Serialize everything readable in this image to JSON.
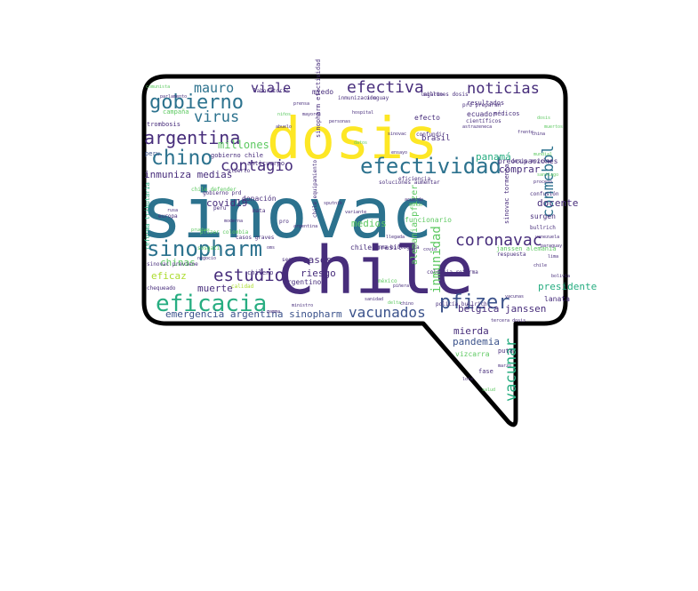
{
  "colors": {
    "yellow": "#fde725",
    "teal": "#2c728e",
    "purple": "#472d7b",
    "green": "#27ad81",
    "lightgreen": "#5ec962",
    "blue": "#3b528b",
    "seagreen": "#21918c",
    "lime": "#addc30",
    "outline": "#000000"
  },
  "words": [
    {
      "text": "sinovac",
      "color": "teal"
    },
    {
      "text": "chile",
      "color": "purple"
    },
    {
      "text": "dosis",
      "color": "yellow"
    },
    {
      "text": "efectividad",
      "color": "teal"
    },
    {
      "text": "sinopharm",
      "color": "teal"
    },
    {
      "text": "eficacia",
      "color": "green"
    },
    {
      "text": "argentina",
      "color": "purple"
    },
    {
      "text": "gobierno",
      "color": "teal"
    },
    {
      "text": "chino",
      "color": "teal"
    },
    {
      "text": "efectiva",
      "color": "purple"
    },
    {
      "text": "noticias",
      "color": "purple"
    },
    {
      "text": "coronavac",
      "color": "purple"
    },
    {
      "text": "pfizer",
      "color": "blue"
    },
    {
      "text": "estudio",
      "color": "purple"
    },
    {
      "text": "virus",
      "color": "teal"
    },
    {
      "text": "mauro",
      "color": "teal"
    },
    {
      "text": "viale",
      "color": "purple"
    },
    {
      "text": "contagio",
      "color": "purple"
    },
    {
      "text": "vacunados",
      "color": "blue"
    },
    {
      "text": "conmebol",
      "color": "teal"
    },
    {
      "text": "vacunar",
      "color": "green"
    },
    {
      "text": "inmunidad",
      "color": "lightgreen"
    },
    {
      "text": "emergencia argentina sinopharm",
      "color": "blue"
    },
    {
      "text": "inmuniza medias",
      "color": "purple"
    },
    {
      "text": "millones",
      "color": "lightgreen"
    },
    {
      "text": "covid19",
      "color": "purple"
    },
    {
      "text": "muerte",
      "color": "purple"
    },
    {
      "text": "riesgo",
      "color": "purple"
    },
    {
      "text": "casos",
      "color": "purple"
    },
    {
      "text": "medios",
      "color": "lightgreen"
    },
    {
      "text": "docente",
      "color": "purple"
    },
    {
      "text": "presidente",
      "color": "green"
    },
    {
      "text": "comprar",
      "color": "purple"
    },
    {
      "text": "pandemia",
      "color": "blue"
    },
    {
      "text": "mierda",
      "color": "purple"
    },
    {
      "text": "bélgica janssen",
      "color": "purple"
    },
    {
      "text": "chinas",
      "color": "lightgreen"
    },
    {
      "text": "eficaz",
      "color": "lime"
    },
    {
      "text": "panamá",
      "color": "green"
    },
    {
      "text": "preocupaciones",
      "color": "purple"
    },
    {
      "text": "brasil",
      "color": "purple"
    },
    {
      "text": "efecto",
      "color": "purple"
    },
    {
      "text": "ecuador",
      "color": "purple"
    },
    {
      "text": "resultados",
      "color": "purple"
    },
    {
      "text": "vizcarra",
      "color": "lightgreen"
    },
    {
      "text": "puta",
      "color": "purple"
    },
    {
      "text": "fase",
      "color": "purple"
    },
    {
      "text": "lanata",
      "color": "purple"
    },
    {
      "text": "surgen",
      "color": "purple"
    },
    {
      "text": "donación",
      "color": "purple"
    },
    {
      "text": "argentino",
      "color": "purple"
    },
    {
      "text": "miedo",
      "color": "purple"
    },
    {
      "text": "laboratorio",
      "color": "purple"
    },
    {
      "text": "campaña",
      "color": "lightgreen"
    },
    {
      "text": "trombosis",
      "color": "purple"
    },
    {
      "text": "gobierno chile",
      "color": "purple"
    },
    {
      "text": "anticuerpo",
      "color": "purple"
    },
    {
      "text": "chile brasil",
      "color": "purple"
    },
    {
      "text": "funcionario",
      "color": "lightgreen"
    },
    {
      "text": "médicos",
      "color": "purple"
    },
    {
      "text": "janssen alemania",
      "color": "lightgreen"
    },
    {
      "text": "alemania pfizer",
      "color": "lightgreen"
    },
    {
      "text": "sinovac tormenta",
      "color": "purple"
    },
    {
      "text": "uruguay",
      "color": "purple"
    },
    {
      "text": "méxico",
      "color": "lightgreen"
    },
    {
      "text": "soluciones aumentar",
      "color": "purple"
    },
    {
      "text": "eficiencia",
      "color": "purple"
    },
    {
      "text": "confundir",
      "color": "purple"
    },
    {
      "text": "lagarto",
      "color": "purple"
    },
    {
      "text": "peru",
      "color": "blue"
    },
    {
      "text": "chileno",
      "color": "purple"
    },
    {
      "text": "segura",
      "color": "purple"
    },
    {
      "text": "pfizer colombia",
      "color": "lightgreen"
    },
    {
      "text": "sinovac previene",
      "color": "purple"
    },
    {
      "text": "chequeado",
      "color": "purple"
    },
    {
      "text": "europa",
      "color": "purple"
    },
    {
      "text": "chile defender",
      "color": "lightgreen"
    },
    {
      "text": "sinopharm efectividad",
      "color": "purple"
    },
    {
      "text": "chile equipamiento",
      "color": "purple"
    },
    {
      "text": "reforma tributaria",
      "color": "green"
    },
    {
      "text": "policía bullrich",
      "color": "purple"
    },
    {
      "text": "dosis mezclar",
      "color": "purple"
    },
    {
      "text": "inmunización",
      "color": "purple"
    },
    {
      "text": "confusión",
      "color": "purple"
    },
    {
      "text": "respuesta",
      "color": "purple"
    },
    {
      "text": "casos graves",
      "color": "purple"
    },
    {
      "text": "alberto",
      "color": "purple"
    },
    {
      "text": "mata",
      "color": "purple"
    },
    {
      "text": "peru",
      "color": "purple"
    },
    {
      "text": "sosgati",
      "color": "lightgreen"
    },
    {
      "text": "calidad",
      "color": "lime"
    },
    {
      "text": "científicos",
      "color": "purple"
    },
    {
      "text": "colombia reforma",
      "color": "purple"
    },
    {
      "text": "arma biológica",
      "color": "purple"
    },
    {
      "text": "pro",
      "color": "purple"
    },
    {
      "text": "prd preparan",
      "color": "purple"
    },
    {
      "text": "gobierno prd",
      "color": "purple"
    },
    {
      "text": "millones dosis",
      "color": "purple"
    },
    {
      "text": "bullrich",
      "color": "purple"
    },
    {
      "text": "comunista",
      "color": "lightgreen"
    },
    {
      "text": "parlamento",
      "color": "purple"
    },
    {
      "text": "abuelo",
      "color": "purple"
    },
    {
      "text": "negocio",
      "color": "purple"
    },
    {
      "text": "pruebas",
      "color": "lightgreen"
    },
    {
      "text": "sinovac",
      "color": "purple"
    },
    {
      "text": "vacunas",
      "color": "purple"
    },
    {
      "text": "chino",
      "color": "purple"
    },
    {
      "text": "frente",
      "color": "purple"
    },
    {
      "text": "dosis",
      "color": "lightgreen"
    },
    {
      "text": "chile",
      "color": "purple"
    },
    {
      "text": "bolivia",
      "color": "purple"
    },
    {
      "text": "sputnik",
      "color": "purple"
    },
    {
      "text": "argentina",
      "color": "purple"
    },
    {
      "text": "mundo",
      "color": "lightgreen"
    },
    {
      "text": "covid",
      "color": "purple"
    },
    {
      "text": "oms",
      "color": "purple"
    },
    {
      "text": "sanidad",
      "color": "purple"
    },
    {
      "text": "marzo",
      "color": "purple"
    },
    {
      "text": "salud",
      "color": "lightgreen"
    },
    {
      "text": "lote",
      "color": "purple"
    },
    {
      "text": "tercera dosis",
      "color": "purple"
    },
    {
      "text": "astrazeneca",
      "color": "purple"
    },
    {
      "text": "mundial",
      "color": "lightgreen"
    },
    {
      "text": "rusa",
      "color": "purple"
    },
    {
      "text": "moderna",
      "color": "purple"
    },
    {
      "text": "variante",
      "color": "purple"
    },
    {
      "text": "delta",
      "color": "lightgreen"
    },
    {
      "text": "gamma",
      "color": "purple"
    },
    {
      "text": "ministro",
      "color": "purple"
    },
    {
      "text": "piñera",
      "color": "purple"
    },
    {
      "text": "santiago",
      "color": "lightgreen"
    },
    {
      "text": "proceso",
      "color": "purple"
    },
    {
      "text": "llegada",
      "color": "purple"
    },
    {
      "text": "ensayo",
      "color": "purple"
    },
    {
      "text": "datos",
      "color": "lightgreen"
    },
    {
      "text": "hospital",
      "color": "purple"
    },
    {
      "text": "personas",
      "color": "purple"
    },
    {
      "text": "mayores",
      "color": "purple"
    },
    {
      "text": "niños",
      "color": "lightgreen"
    },
    {
      "text": "prensa",
      "color": "purple"
    },
    {
      "text": "acuerdo",
      "color": "purple"
    },
    {
      "text": "china",
      "color": "purple"
    },
    {
      "text": "muertos",
      "color": "lightgreen"
    },
    {
      "text": "venezuela",
      "color": "purple"
    },
    {
      "text": "paraguay",
      "color": "purple"
    },
    {
      "text": "lima",
      "color": "purple"
    }
  ]
}
